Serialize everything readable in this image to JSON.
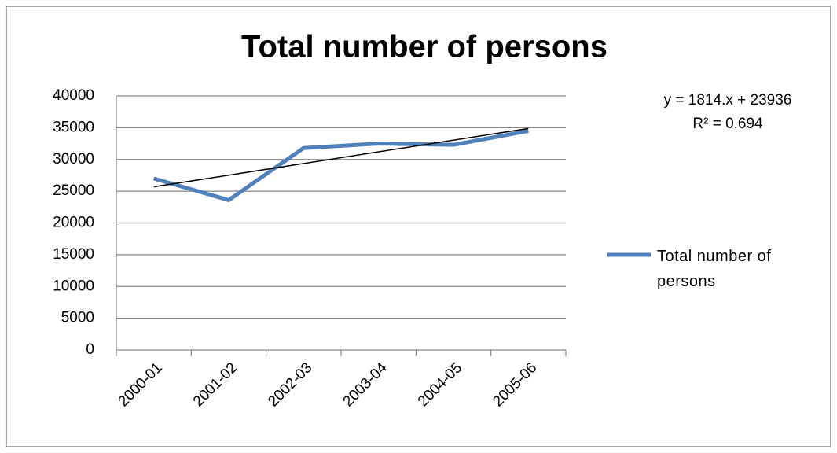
{
  "chart_data": {
    "type": "line",
    "title": "Total number of  persons",
    "categories": [
      "2000-01",
      "2001-02",
      "2002-03",
      "2003-04",
      "2004-05",
      "2005-06"
    ],
    "series": [
      {
        "name": "Total number of persons",
        "color": "#4f81bd",
        "values": [
          27000,
          23600,
          31800,
          32500,
          32300,
          34500
        ]
      }
    ],
    "ylim": [
      0,
      40000
    ],
    "yticks": [
      0,
      5000,
      10000,
      15000,
      20000,
      25000,
      30000,
      35000,
      40000
    ],
    "grid": true,
    "legend": "right",
    "trendline": {
      "type": "linear",
      "color": "#000000",
      "equation": "y = 1814.x + 23936",
      "r_squared": "R² = 0.694"
    }
  }
}
